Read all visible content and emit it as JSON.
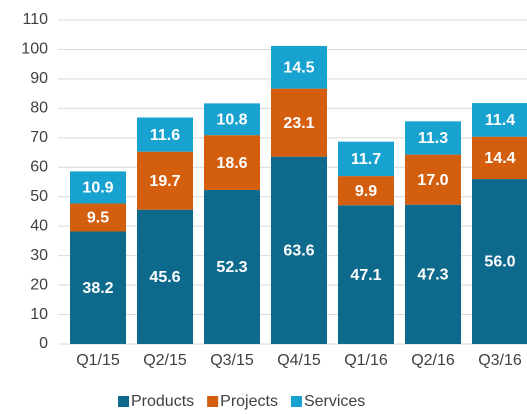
{
  "chart_data": {
    "type": "stacked_bar",
    "categories": [
      "Q1/15",
      "Q2/15",
      "Q3/15",
      "Q4/15",
      "Q1/16",
      "Q2/16",
      "Q3/16"
    ],
    "series": [
      {
        "name": "Products",
        "color": "#0e6a8c",
        "values": [
          38.2,
          45.6,
          52.3,
          63.6,
          47.1,
          47.3,
          56.0
        ],
        "value_labels": [
          "38.2",
          "45.6",
          "52.3",
          "63.6",
          "47.1",
          "47.3",
          "56.0"
        ]
      },
      {
        "name": "Projects",
        "color": "#d35f0e",
        "values": [
          9.5,
          19.7,
          18.6,
          23.1,
          9.9,
          17.0,
          14.4
        ],
        "value_labels": [
          "9.5",
          "19.7",
          "18.6",
          "23.1",
          "9.9",
          "17.0",
          "14.4"
        ]
      },
      {
        "name": "Services",
        "color": "#17a2cf",
        "values": [
          10.9,
          11.6,
          10.8,
          14.5,
          11.7,
          11.3,
          11.4
        ]
      }
    ],
    "ylim": [
      0,
      110
    ],
    "yticks": [
      0,
      10,
      20,
      30,
      40,
      50,
      60,
      70,
      80,
      90,
      100,
      110
    ],
    "grid": true,
    "legend": "bottom"
  }
}
